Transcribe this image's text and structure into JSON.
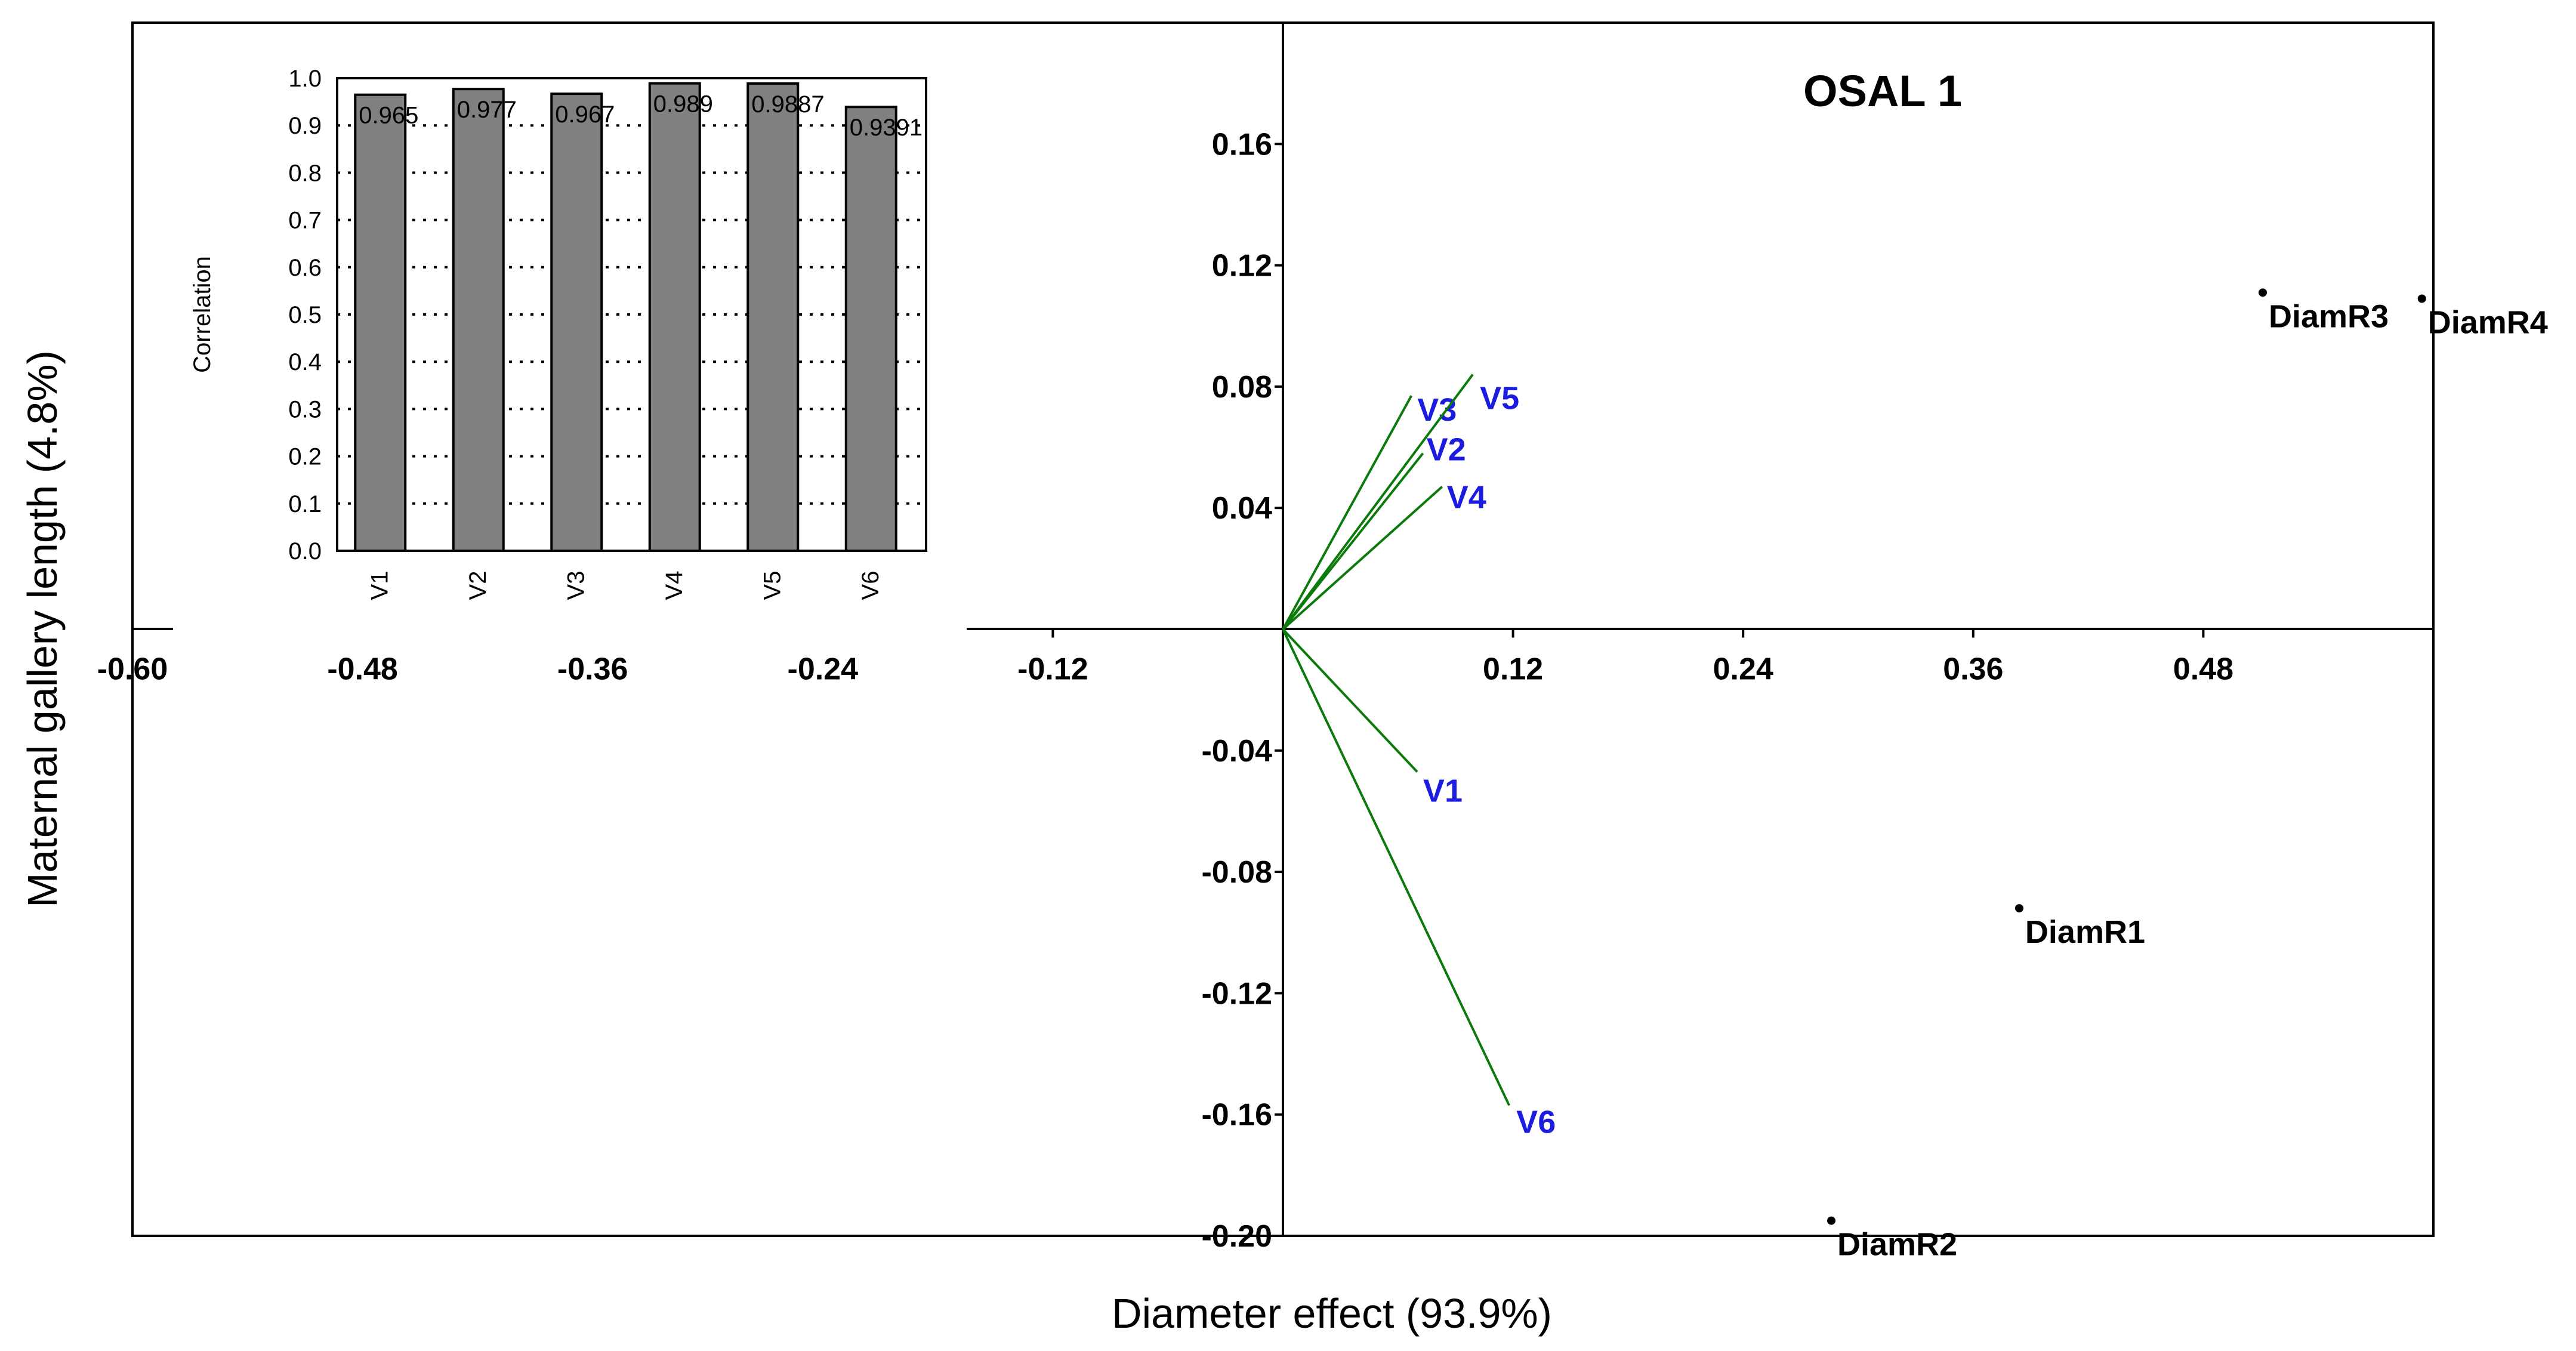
{
  "chart_data": {
    "type": "scatter",
    "subtype": "biplot",
    "title": "OSAL 1",
    "xlabel": "Diameter effect (93.9%)",
    "ylabel": "Maternal gallery length (4.8%)",
    "xlim": [
      -0.6,
      0.6
    ],
    "ylim": [
      -0.2,
      0.2
    ],
    "x_ticks": [
      -0.6,
      -0.48,
      -0.36,
      -0.24,
      -0.12,
      0.12,
      0.24,
      0.36,
      0.48
    ],
    "x_tick_labels": [
      "-0.60",
      "-0.48",
      "-0.36",
      "-0.24",
      "-0.12",
      "0.12",
      "0.24",
      "0.36",
      "0.48"
    ],
    "y_ticks": [
      0.16,
      0.12,
      0.08,
      0.04,
      -0.04,
      -0.08,
      -0.12,
      -0.16,
      -0.2
    ],
    "y_tick_labels": [
      "0.16",
      "0.12",
      "0.08",
      "0.04",
      "-0.04",
      "-0.08",
      "-0.12",
      "-0.16",
      "-0.20"
    ],
    "vectors": [
      {
        "name": "V1",
        "x": 0.07,
        "y": -0.047
      },
      {
        "name": "V2",
        "x": 0.073,
        "y": 0.058
      },
      {
        "name": "V3",
        "x": 0.067,
        "y": 0.077
      },
      {
        "name": "V4",
        "x": 0.083,
        "y": 0.047
      },
      {
        "name": "V5",
        "x": 0.099,
        "y": 0.084
      },
      {
        "name": "V6",
        "x": 0.118,
        "y": -0.157
      }
    ],
    "points": [
      {
        "name": "DiamR1",
        "x": 0.384,
        "y": -0.092
      },
      {
        "name": "DiamR2",
        "x": 0.286,
        "y": -0.195
      },
      {
        "name": "DiamR3",
        "x": 0.511,
        "y": 0.111
      },
      {
        "name": "DiamR4",
        "x": 0.594,
        "y": 0.109
      }
    ],
    "inset": {
      "type": "bar",
      "ylabel": "Correlation",
      "ylim": [
        0,
        1
      ],
      "y_ticks": [
        0,
        0.1,
        0.2,
        0.3,
        0.4,
        0.5,
        0.6,
        0.7,
        0.8,
        0.9,
        1.0
      ],
      "y_tick_labels": [
        "0.0",
        "0.1",
        "0.2",
        "0.3",
        "0.4",
        "0.5",
        "0.6",
        "0.7",
        "0.8",
        "0.9",
        "1.0"
      ],
      "categories": [
        "V1",
        "V2",
        "V3",
        "V4",
        "V5",
        "V6"
      ],
      "values": [
        0.965,
        0.977,
        0.967,
        0.989,
        0.9887,
        0.9391
      ],
      "value_labels": [
        "0.965",
        "0.977",
        "0.967",
        "0.989",
        "0.9887",
        "0.9391"
      ]
    }
  }
}
